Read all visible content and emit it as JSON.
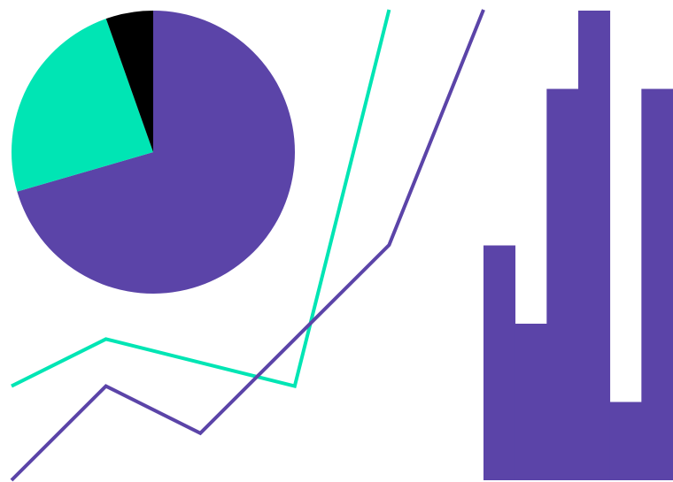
{
  "colors": {
    "purple": "#5b44a8",
    "teal": "#00e5b4",
    "black": "#000000",
    "background": "#ffffff"
  },
  "chart_data": [
    {
      "type": "pie",
      "title": "",
      "slices": [
        {
          "value": 70.5,
          "color": "#5b44a8"
        },
        {
          "value": 24.1,
          "color": "#00e5b4"
        },
        {
          "value": 5.4,
          "color": "#000000"
        }
      ]
    },
    {
      "type": "line",
      "title": "",
      "xlabel": "",
      "ylabel": "",
      "x": [
        0,
        1,
        2,
        3,
        4,
        5
      ],
      "xlim": [
        0,
        5
      ],
      "ylim": [
        0,
        10
      ],
      "series": [
        {
          "color": "#00e5b4",
          "values": [
            2,
            3,
            null,
            2,
            10,
            null
          ]
        },
        {
          "color": "#5b44a8",
          "values": [
            0,
            2,
            1,
            3,
            5,
            10
          ]
        }
      ]
    },
    {
      "type": "bar",
      "title": "",
      "xlabel": "",
      "ylabel": "",
      "categories": [
        "",
        "",
        "",
        "",
        "",
        ""
      ],
      "ylim": [
        0,
        6
      ],
      "color": "#5b44a8",
      "values": [
        3,
        2,
        5,
        6,
        1,
        5
      ]
    }
  ]
}
